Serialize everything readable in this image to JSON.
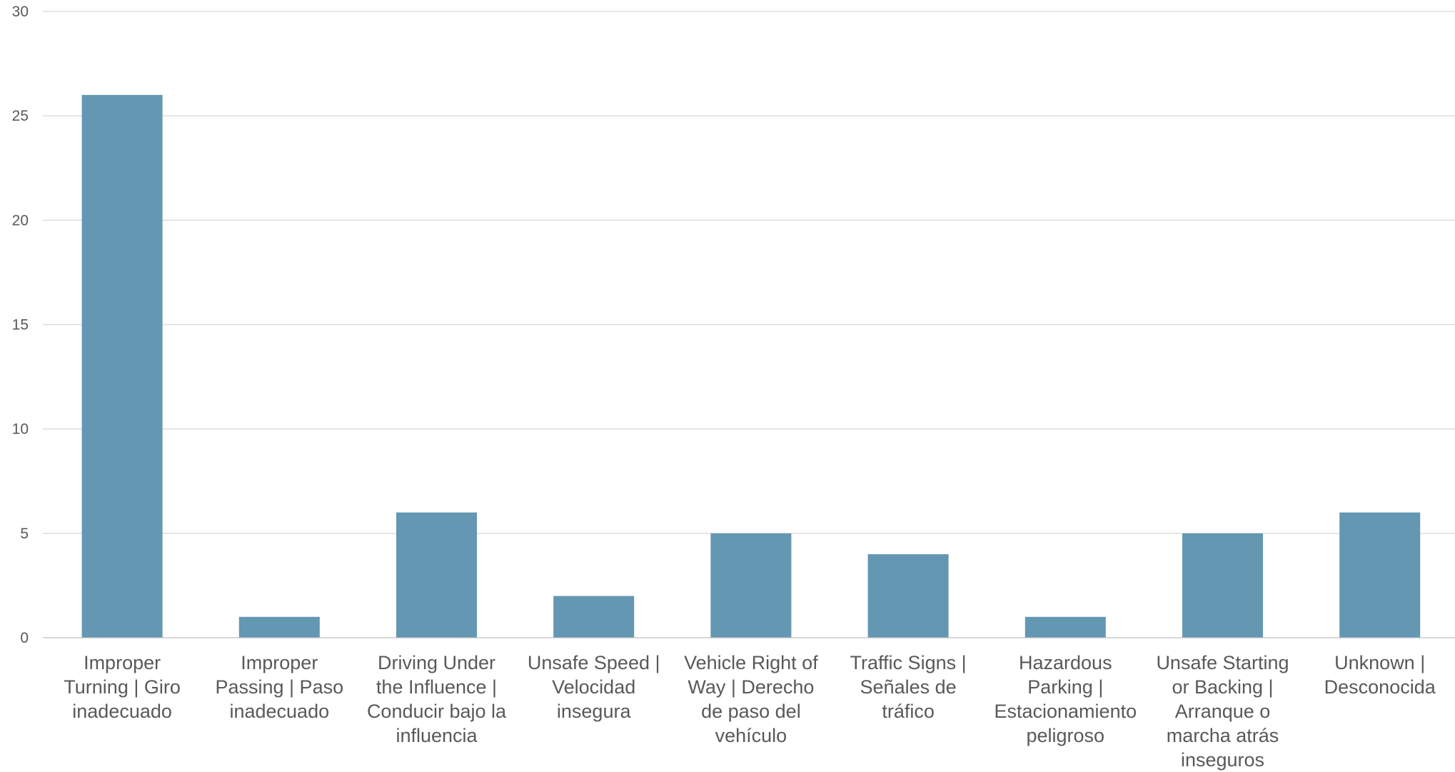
{
  "chart_data": {
    "type": "bar",
    "title": "",
    "xlabel": "",
    "ylabel": "",
    "categories": [
      "Improper\nTurning | Giro\ninadecuado",
      "Improper\nPassing | Paso\ninadecuado",
      "Driving Under\nthe Influence |\nConducir bajo la\ninfluencia",
      "Unsafe Speed |\nVelocidad\ninsegura",
      "Vehicle Right of\nWay | Derecho\nde paso del\nvehículo",
      "Traffic Signs |\nSeñales de\ntráfico",
      "Hazardous\nParking |\nEstacionamiento\npeligroso",
      "Unsafe Starting\nor Backing |\nArranque o\nmarcha atrás\ninseguros",
      "Unknown |\nDesconocida"
    ],
    "values": [
      26,
      1,
      6,
      2,
      5,
      4,
      1,
      5,
      6
    ],
    "ylim": [
      0,
      30
    ],
    "yticks": [
      "0",
      "5",
      "10",
      "15",
      "20",
      "25",
      "30"
    ],
    "grid": true,
    "legend": "none",
    "colors": {
      "bar": "#6497b1",
      "grid": "#d9d9d9",
      "text": "#595959"
    }
  }
}
